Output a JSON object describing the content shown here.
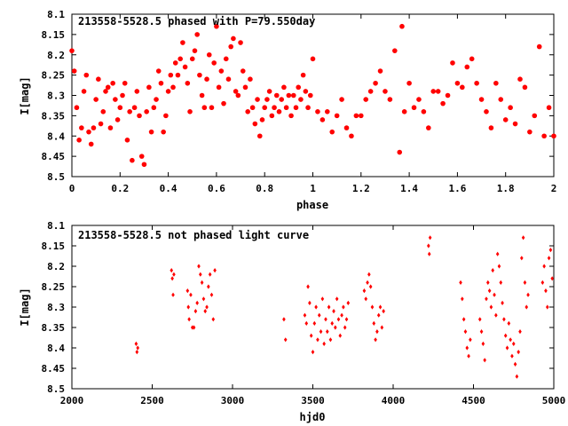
{
  "chart_data": [
    {
      "type": "scatter",
      "title": "213558-5528.5 phased with P=79.550day",
      "xlabel": "phase",
      "ylabel": "I[mag]",
      "xlim": [
        0,
        2
      ],
      "ylim": [
        8.1,
        8.5
      ],
      "y_inverted": true,
      "grid": false,
      "marker_color": "#ff0000",
      "marker": "filled-circle",
      "x_ticks": [
        "0",
        "0.2",
        "0.4",
        "0.6",
        "0.8",
        "1",
        "1.2",
        "1.4",
        "1.6",
        "1.8",
        "2"
      ],
      "y_ticks": [
        "8.1",
        "8.15",
        "8.2",
        "8.25",
        "8.3",
        "8.35",
        "8.4",
        "8.45",
        "8.5"
      ],
      "points": [
        [
          0.0,
          8.19
        ],
        [
          0.01,
          8.24
        ],
        [
          0.02,
          8.33
        ],
        [
          0.03,
          8.41
        ],
        [
          0.04,
          8.38
        ],
        [
          0.05,
          8.29
        ],
        [
          0.06,
          8.25
        ],
        [
          0.07,
          8.39
        ],
        [
          0.08,
          8.42
        ],
        [
          0.09,
          8.38
        ],
        [
          0.1,
          8.31
        ],
        [
          0.11,
          8.26
        ],
        [
          0.12,
          8.37
        ],
        [
          0.13,
          8.34
        ],
        [
          0.14,
          8.29
        ],
        [
          0.15,
          8.28
        ],
        [
          0.16,
          8.38
        ],
        [
          0.17,
          8.27
        ],
        [
          0.18,
          8.31
        ],
        [
          0.19,
          8.36
        ],
        [
          0.2,
          8.33
        ],
        [
          0.21,
          8.3
        ],
        [
          0.22,
          8.27
        ],
        [
          0.23,
          8.41
        ],
        [
          0.24,
          8.34
        ],
        [
          0.25,
          8.46
        ],
        [
          0.26,
          8.33
        ],
        [
          0.27,
          8.29
        ],
        [
          0.28,
          8.35
        ],
        [
          0.29,
          8.45
        ],
        [
          0.3,
          8.47
        ],
        [
          0.31,
          8.34
        ],
        [
          0.32,
          8.28
        ],
        [
          0.33,
          8.39
        ],
        [
          0.34,
          8.33
        ],
        [
          0.35,
          8.31
        ],
        [
          0.36,
          8.24
        ],
        [
          0.37,
          8.27
        ],
        [
          0.38,
          8.39
        ],
        [
          0.39,
          8.35
        ],
        [
          0.4,
          8.29
        ],
        [
          0.41,
          8.25
        ],
        [
          0.42,
          8.28
        ],
        [
          0.43,
          8.22
        ],
        [
          0.44,
          8.25
        ],
        [
          0.45,
          8.21
        ],
        [
          0.46,
          8.17
        ],
        [
          0.47,
          8.23
        ],
        [
          0.48,
          8.27
        ],
        [
          0.49,
          8.34
        ],
        [
          0.5,
          8.21
        ],
        [
          0.51,
          8.19
        ],
        [
          0.52,
          8.15
        ],
        [
          0.53,
          8.25
        ],
        [
          0.54,
          8.3
        ],
        [
          0.55,
          8.33
        ],
        [
          0.56,
          8.26
        ],
        [
          0.57,
          8.2
        ],
        [
          0.58,
          8.33
        ],
        [
          0.59,
          8.22
        ],
        [
          0.6,
          8.13
        ],
        [
          0.61,
          8.28
        ],
        [
          0.62,
          8.24
        ],
        [
          0.63,
          8.32
        ],
        [
          0.64,
          8.21
        ],
        [
          0.65,
          8.26
        ],
        [
          0.66,
          8.18
        ],
        [
          0.67,
          8.16
        ],
        [
          0.68,
          8.29
        ],
        [
          0.69,
          8.3
        ],
        [
          0.7,
          8.17
        ],
        [
          0.71,
          8.24
        ],
        [
          0.72,
          8.28
        ],
        [
          0.73,
          8.34
        ],
        [
          0.74,
          8.26
        ],
        [
          0.75,
          8.33
        ],
        [
          0.76,
          8.37
        ],
        [
          0.77,
          8.31
        ],
        [
          0.78,
          8.4
        ],
        [
          0.79,
          8.36
        ],
        [
          0.8,
          8.33
        ],
        [
          0.81,
          8.31
        ],
        [
          0.82,
          8.29
        ],
        [
          0.83,
          8.35
        ],
        [
          0.84,
          8.33
        ],
        [
          0.85,
          8.3
        ],
        [
          0.86,
          8.34
        ],
        [
          0.87,
          8.31
        ],
        [
          0.88,
          8.28
        ],
        [
          0.89,
          8.33
        ],
        [
          0.9,
          8.3
        ],
        [
          0.91,
          8.35
        ],
        [
          0.92,
          8.3
        ],
        [
          0.93,
          8.33
        ],
        [
          0.94,
          8.28
        ],
        [
          0.95,
          8.31
        ],
        [
          0.96,
          8.25
        ],
        [
          0.97,
          8.29
        ],
        [
          0.98,
          8.33
        ],
        [
          0.99,
          8.3
        ],
        [
          1.0,
          8.21
        ],
        [
          1.02,
          8.34
        ],
        [
          1.04,
          8.36
        ],
        [
          1.06,
          8.34
        ],
        [
          1.08,
          8.39
        ],
        [
          1.1,
          8.35
        ],
        [
          1.12,
          8.31
        ],
        [
          1.14,
          8.38
        ],
        [
          1.16,
          8.4
        ],
        [
          1.18,
          8.35
        ],
        [
          1.2,
          8.35
        ],
        [
          1.22,
          8.31
        ],
        [
          1.24,
          8.29
        ],
        [
          1.26,
          8.27
        ],
        [
          1.28,
          8.24
        ],
        [
          1.3,
          8.29
        ],
        [
          1.32,
          8.31
        ],
        [
          1.34,
          8.19
        ],
        [
          1.36,
          8.44
        ],
        [
          1.37,
          8.13
        ],
        [
          1.38,
          8.34
        ],
        [
          1.4,
          8.27
        ],
        [
          1.42,
          8.33
        ],
        [
          1.44,
          8.31
        ],
        [
          1.46,
          8.34
        ],
        [
          1.48,
          8.38
        ],
        [
          1.5,
          8.29
        ],
        [
          1.52,
          8.29
        ],
        [
          1.54,
          8.32
        ],
        [
          1.56,
          8.3
        ],
        [
          1.58,
          8.22
        ],
        [
          1.6,
          8.27
        ],
        [
          1.62,
          8.28
        ],
        [
          1.64,
          8.23
        ],
        [
          1.66,
          8.21
        ],
        [
          1.68,
          8.27
        ],
        [
          1.7,
          8.31
        ],
        [
          1.72,
          8.34
        ],
        [
          1.74,
          8.38
        ],
        [
          1.76,
          8.27
        ],
        [
          1.78,
          8.31
        ],
        [
          1.8,
          8.36
        ],
        [
          1.82,
          8.33
        ],
        [
          1.84,
          8.37
        ],
        [
          1.86,
          8.26
        ],
        [
          1.88,
          8.28
        ],
        [
          1.9,
          8.39
        ],
        [
          1.92,
          8.35
        ],
        [
          1.94,
          8.18
        ],
        [
          1.96,
          8.4
        ],
        [
          1.98,
          8.33
        ],
        [
          2.0,
          8.4
        ]
      ]
    },
    {
      "type": "scatter",
      "title": "213558-5528.5 not phased light curve",
      "xlabel": "hjd0",
      "ylabel": "I[mag]",
      "xlim": [
        2000,
        5000
      ],
      "ylim": [
        8.1,
        8.5
      ],
      "y_inverted": true,
      "grid": false,
      "marker_color": "#ff0000",
      "marker": "small-diamond",
      "x_ticks": [
        "2000",
        "2500",
        "3000",
        "3500",
        "4000",
        "4500",
        "5000"
      ],
      "y_ticks": [
        "8.1",
        "8.15",
        "8.2",
        "8.25",
        "8.3",
        "8.35",
        "8.4",
        "8.45",
        "8.5"
      ],
      "points": [
        [
          2400,
          8.39
        ],
        [
          2405,
          8.41
        ],
        [
          2410,
          8.4
        ],
        [
          2620,
          8.21
        ],
        [
          2625,
          8.23
        ],
        [
          2630,
          8.27
        ],
        [
          2635,
          8.22
        ],
        [
          2720,
          8.26
        ],
        [
          2725,
          8.3
        ],
        [
          2730,
          8.33
        ],
        [
          2740,
          8.27
        ],
        [
          2750,
          8.35
        ],
        [
          2760,
          8.35
        ],
        [
          2770,
          8.31
        ],
        [
          2780,
          8.29
        ],
        [
          2790,
          8.2
        ],
        [
          2800,
          8.22
        ],
        [
          2810,
          8.24
        ],
        [
          2820,
          8.28
        ],
        [
          2830,
          8.31
        ],
        [
          2840,
          8.3
        ],
        [
          2850,
          8.25
        ],
        [
          2860,
          8.22
        ],
        [
          2870,
          8.27
        ],
        [
          2880,
          8.33
        ],
        [
          2890,
          8.21
        ],
        [
          3320,
          8.33
        ],
        [
          3330,
          8.38
        ],
        [
          3450,
          8.32
        ],
        [
          3460,
          8.34
        ],
        [
          3470,
          8.25
        ],
        [
          3480,
          8.29
        ],
        [
          3490,
          8.37
        ],
        [
          3500,
          8.41
        ],
        [
          3510,
          8.34
        ],
        [
          3520,
          8.3
        ],
        [
          3530,
          8.38
        ],
        [
          3540,
          8.32
        ],
        [
          3550,
          8.36
        ],
        [
          3560,
          8.28
        ],
        [
          3570,
          8.39
        ],
        [
          3580,
          8.33
        ],
        [
          3590,
          8.36
        ],
        [
          3600,
          8.3
        ],
        [
          3610,
          8.38
        ],
        [
          3620,
          8.34
        ],
        [
          3630,
          8.31
        ],
        [
          3640,
          8.35
        ],
        [
          3650,
          8.28
        ],
        [
          3660,
          8.33
        ],
        [
          3670,
          8.37
        ],
        [
          3680,
          8.32
        ],
        [
          3690,
          8.3
        ],
        [
          3700,
          8.35
        ],
        [
          3710,
          8.33
        ],
        [
          3720,
          8.29
        ],
        [
          3820,
          8.26
        ],
        [
          3830,
          8.28
        ],
        [
          3840,
          8.24
        ],
        [
          3850,
          8.22
        ],
        [
          3860,
          8.25
        ],
        [
          3870,
          8.3
        ],
        [
          3880,
          8.34
        ],
        [
          3890,
          8.38
        ],
        [
          3900,
          8.36
        ],
        [
          3910,
          8.32
        ],
        [
          3920,
          8.3
        ],
        [
          3930,
          8.35
        ],
        [
          3940,
          8.31
        ],
        [
          4220,
          8.15
        ],
        [
          4225,
          8.17
        ],
        [
          4230,
          8.13
        ],
        [
          4420,
          8.24
        ],
        [
          4430,
          8.28
        ],
        [
          4440,
          8.33
        ],
        [
          4450,
          8.36
        ],
        [
          4460,
          8.4
        ],
        [
          4470,
          8.42
        ],
        [
          4480,
          8.38
        ],
        [
          4540,
          8.33
        ],
        [
          4550,
          8.36
        ],
        [
          4560,
          8.39
        ],
        [
          4570,
          8.43
        ],
        [
          4580,
          8.28
        ],
        [
          4590,
          8.24
        ],
        [
          4600,
          8.26
        ],
        [
          4610,
          8.3
        ],
        [
          4620,
          8.21
        ],
        [
          4630,
          8.27
        ],
        [
          4640,
          8.32
        ],
        [
          4650,
          8.17
        ],
        [
          4660,
          8.2
        ],
        [
          4670,
          8.24
        ],
        [
          4680,
          8.29
        ],
        [
          4690,
          8.33
        ],
        [
          4700,
          8.37
        ],
        [
          4710,
          8.4
        ],
        [
          4720,
          8.34
        ],
        [
          4730,
          8.38
        ],
        [
          4740,
          8.42
        ],
        [
          4750,
          8.39
        ],
        [
          4760,
          8.44
        ],
        [
          4770,
          8.47
        ],
        [
          4780,
          8.41
        ],
        [
          4790,
          8.36
        ],
        [
          4800,
          8.18
        ],
        [
          4810,
          8.13
        ],
        [
          4820,
          8.24
        ],
        [
          4830,
          8.3
        ],
        [
          4840,
          8.27
        ],
        [
          4930,
          8.24
        ],
        [
          4940,
          8.2
        ],
        [
          4950,
          8.26
        ],
        [
          4960,
          8.3
        ],
        [
          4970,
          8.18
        ],
        [
          4980,
          8.16
        ],
        [
          4990,
          8.23
        ]
      ]
    }
  ]
}
